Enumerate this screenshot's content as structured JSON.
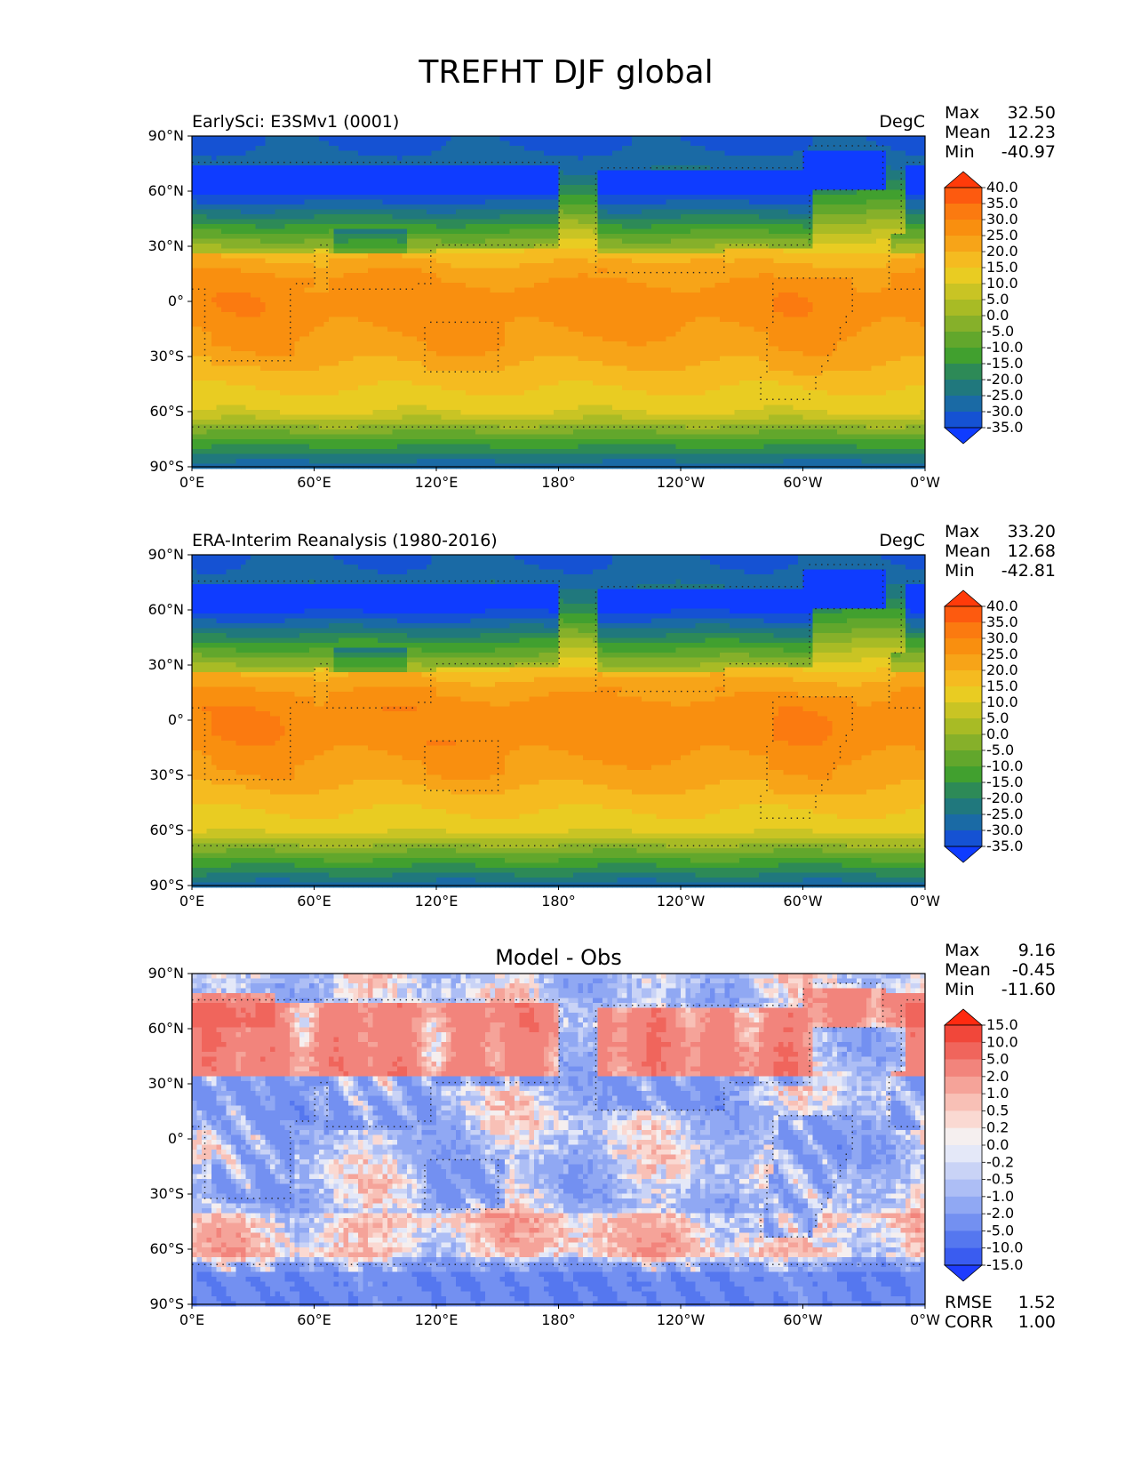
{
  "figure_title": "TREFHT DJF global",
  "chart_data": [
    {
      "type": "heatmap",
      "map_projection": "plate-carree",
      "left_title": "EarlySci: E3SMv1 (0001)",
      "center_title": "",
      "units": "DegC",
      "x_ticks": [
        "0°E",
        "60°E",
        "120°E",
        "180°",
        "120°W",
        "60°W",
        "0°W"
      ],
      "y_ticks": [
        "90°N",
        "60°N",
        "30°N",
        "0°",
        "30°S",
        "60°S",
        "90°S"
      ],
      "xlim": [
        0,
        360
      ],
      "ylim": [
        -90,
        90
      ],
      "stats": [
        {
          "label": "Max",
          "value": "32.50"
        },
        {
          "label": "Mean",
          "value": "12.23"
        },
        {
          "label": "Min",
          "value": "-40.97"
        }
      ],
      "colorbar": {
        "levels": [
          "40.0",
          "35.0",
          "30.0",
          "25.0",
          "20.0",
          "15.0",
          "10.0",
          "5.0",
          "0.0",
          "-5.0",
          "-10.0",
          "-15.0",
          "-20.0",
          "-25.0",
          "-30.0",
          "-35.0"
        ],
        "colors": [
          "#ff3b0a",
          "#fd5a0f",
          "#fb7a10",
          "#f98f0f",
          "#f7a418",
          "#f5bb20",
          "#e9cc22",
          "#c9c424",
          "#a8bb25",
          "#86b02a",
          "#62a72c",
          "#41a02f",
          "#2d8a57",
          "#20787d",
          "#1a6aa5",
          "#1552d3",
          "#0f3cff"
        ],
        "extend": "both"
      },
      "field_model": "temperature"
    },
    {
      "type": "heatmap",
      "map_projection": "plate-carree",
      "left_title": "ERA-Interim Reanalysis (1980-2016)",
      "center_title": "",
      "units": "DegC",
      "x_ticks": [
        "0°E",
        "60°E",
        "120°E",
        "180°",
        "120°W",
        "60°W",
        "0°W"
      ],
      "y_ticks": [
        "90°N",
        "60°N",
        "30°N",
        "0°",
        "30°S",
        "60°S",
        "90°S"
      ],
      "xlim": [
        0,
        360
      ],
      "ylim": [
        -90,
        90
      ],
      "stats": [
        {
          "label": "Max",
          "value": "33.20"
        },
        {
          "label": "Mean",
          "value": "12.68"
        },
        {
          "label": "Min",
          "value": "-42.81"
        }
      ],
      "colorbar": {
        "levels": [
          "40.0",
          "35.0",
          "30.0",
          "25.0",
          "20.0",
          "15.0",
          "10.0",
          "5.0",
          "0.0",
          "-5.0",
          "-10.0",
          "-15.0",
          "-20.0",
          "-25.0",
          "-30.0",
          "-35.0"
        ],
        "colors": [
          "#ff3b0a",
          "#fd5a0f",
          "#fb7a10",
          "#f98f0f",
          "#f7a418",
          "#f5bb20",
          "#e9cc22",
          "#c9c424",
          "#a8bb25",
          "#86b02a",
          "#62a72c",
          "#41a02f",
          "#2d8a57",
          "#20787d",
          "#1a6aa5",
          "#1552d3",
          "#0f3cff"
        ],
        "extend": "both"
      },
      "field_model": "temperature"
    },
    {
      "type": "heatmap",
      "map_projection": "plate-carree",
      "left_title": "",
      "center_title": "Model - Obs",
      "units": "",
      "x_ticks": [
        "0°E",
        "60°E",
        "120°E",
        "180°",
        "120°W",
        "60°W",
        "0°W"
      ],
      "y_ticks": [
        "90°N",
        "60°N",
        "30°N",
        "0°",
        "30°S",
        "60°S",
        "90°S"
      ],
      "xlim": [
        0,
        360
      ],
      "ylim": [
        -90,
        90
      ],
      "stats": [
        {
          "label": "Max",
          "value": "9.16"
        },
        {
          "label": "Mean",
          "value": "-0.45"
        },
        {
          "label": "Min",
          "value": "-11.60"
        }
      ],
      "extra_stats": [
        {
          "label": "RMSE",
          "value": "1.52"
        },
        {
          "label": "CORR",
          "value": "1.00"
        }
      ],
      "colorbar": {
        "levels": [
          "15.0",
          "10.0",
          "5.0",
          "2.0",
          "1.0",
          "0.5",
          "0.2",
          "0.0",
          "-0.2",
          "-0.5",
          "-1.0",
          "-2.0",
          "-5.0",
          "-10.0",
          "-15.0"
        ],
        "colors": [
          "#ff2a10",
          "#f1473a",
          "#f0655c",
          "#f2847c",
          "#f5a399",
          "#f8c0b6",
          "#fad9d2",
          "#f5efef",
          "#e4e8f8",
          "#c9d3f6",
          "#adbef5",
          "#90a8f3",
          "#7390f1",
          "#5577ef",
          "#3a5cf0",
          "#1e3cff"
        ],
        "extend": "both"
      },
      "field_model": "difference"
    }
  ]
}
